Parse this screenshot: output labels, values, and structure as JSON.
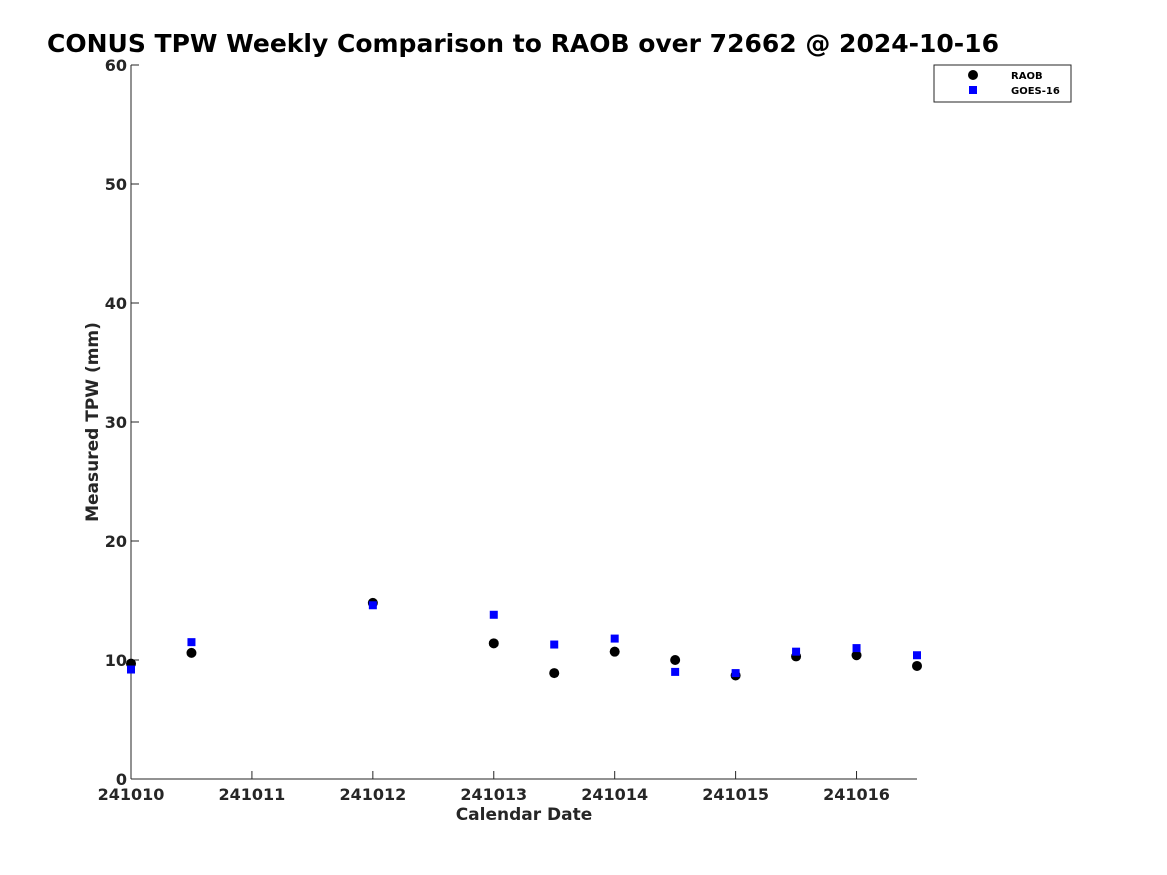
{
  "chart_data": {
    "type": "scatter",
    "title": "CONUS TPW Weekly Comparison to RAOB over 72662 @ 2024-10-16",
    "xlabel": "Calendar Date",
    "ylabel": "Measured TPW (mm)",
    "x_tick_labels": [
      "241010",
      "241011",
      "241012",
      "241013",
      "241014",
      "241015",
      "241016"
    ],
    "x_tick_values": [
      0,
      1,
      2,
      3,
      4,
      5,
      6
    ],
    "xlim": [
      0,
      6.5
    ],
    "ylim": [
      0,
      60
    ],
    "y_ticks": [
      0,
      10,
      20,
      30,
      40,
      50,
      60
    ],
    "grid": false,
    "legend_position": "top-right",
    "series": [
      {
        "name": "RAOB",
        "marker": "circle",
        "color": "#000000",
        "x": [
          0,
          0.5,
          2,
          3,
          3.5,
          4,
          4.5,
          5,
          5.5,
          6,
          6.5
        ],
        "y": [
          9.7,
          10.6,
          14.8,
          11.4,
          8.9,
          10.7,
          10.0,
          8.7,
          10.3,
          10.4,
          9.5
        ]
      },
      {
        "name": "GOES-16",
        "marker": "square",
        "color": "#0000ff",
        "x": [
          0,
          0.5,
          2,
          3,
          3.5,
          4,
          4.5,
          5,
          5.5,
          6,
          6.5
        ],
        "y": [
          9.2,
          11.5,
          14.6,
          13.8,
          11.3,
          11.8,
          9.0,
          8.9,
          10.7,
          11.0,
          10.4
        ]
      }
    ]
  }
}
